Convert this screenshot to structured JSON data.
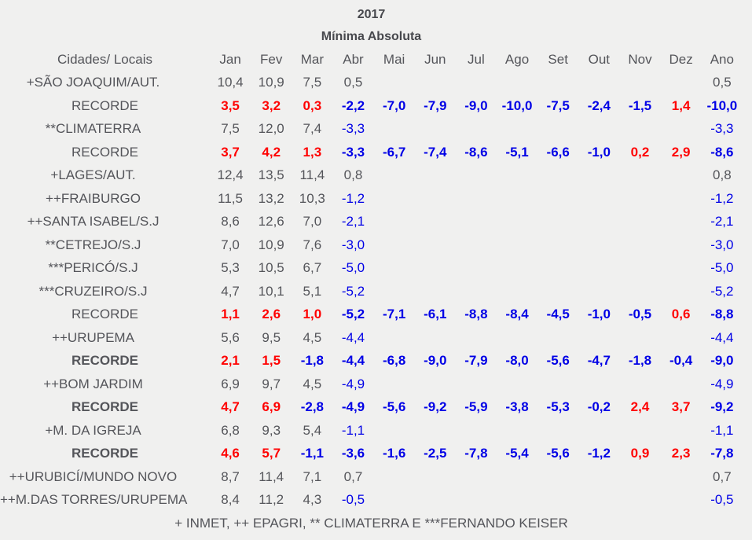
{
  "title": "2017",
  "subtitle": "Mínima Absoluta",
  "footer": "+ INMET, ++ EPAGRI, ** CLIMATERRA E ***FERNANDO KEISER",
  "colors": {
    "background": "#f0f0ef",
    "text_gray": "#54555a",
    "title_gray": "#47484d",
    "record_positive_red": "#ff0000",
    "negative_blue": "#0000e6"
  },
  "table": {
    "columns": [
      "Cidades/ Locais",
      "Jan",
      "Fev",
      "Mar",
      "Abr",
      "Mai",
      "Jun",
      "Jul",
      "Ago",
      "Set",
      "Out",
      "Nov",
      "Dez",
      "Ano"
    ],
    "rows": [
      {
        "label": "+SÃO JOAQUIM/AUT.",
        "type": "station",
        "bold_label": false,
        "values": [
          "10,4",
          "10,9",
          "7,5",
          "0,5",
          "",
          "",
          "",
          "",
          "",
          "",
          "",
          "",
          "0,5"
        ]
      },
      {
        "label": "RECORDE",
        "type": "record",
        "bold_label": false,
        "values": [
          "3,5",
          "3,2",
          "0,3",
          "-2,2",
          "-7,0",
          "-7,9",
          "-9,0",
          "-10,0",
          "-7,5",
          "-2,4",
          "-1,5",
          "1,4",
          "-10,0"
        ]
      },
      {
        "label": "**CLIMATERRA",
        "type": "station",
        "bold_label": false,
        "values": [
          "7,5",
          "12,0",
          "7,4",
          "-3,3",
          "",
          "",
          "",
          "",
          "",
          "",
          "",
          "",
          "-3,3"
        ]
      },
      {
        "label": "RECORDE",
        "type": "record",
        "bold_label": false,
        "values": [
          "3,7",
          "4,2",
          "1,3",
          "-3,3",
          "-6,7",
          "-7,4",
          "-8,6",
          "-5,1",
          "-6,6",
          "-1,0",
          "0,2",
          "2,9",
          "-8,6"
        ]
      },
      {
        "label": "+LAGES/AUT.",
        "type": "station",
        "bold_label": false,
        "values": [
          "12,4",
          "13,5",
          "11,4",
          "0,8",
          "",
          "",
          "",
          "",
          "",
          "",
          "",
          "",
          "0,8"
        ]
      },
      {
        "label": "++FRAIBURGO",
        "type": "station",
        "bold_label": false,
        "values": [
          "11,5",
          "13,2",
          "10,3",
          "-1,2",
          "",
          "",
          "",
          "",
          "",
          "",
          "",
          "",
          "-1,2"
        ]
      },
      {
        "label": "++SANTA ISABEL/S.J",
        "type": "station",
        "bold_label": false,
        "values": [
          "8,6",
          "12,6",
          "7,0",
          "-2,1",
          "",
          "",
          "",
          "",
          "",
          "",
          "",
          "",
          "-2,1"
        ]
      },
      {
        "label": "**CETREJO/S.J",
        "type": "station",
        "bold_label": false,
        "values": [
          "7,0",
          "10,9",
          "7,6",
          "-3,0",
          "",
          "",
          "",
          "",
          "",
          "",
          "",
          "",
          "-3,0"
        ]
      },
      {
        "label": "***PERICÓ/S.J",
        "type": "station",
        "bold_label": false,
        "values": [
          "5,3",
          "10,5",
          "6,7",
          "-5,0",
          "",
          "",
          "",
          "",
          "",
          "",
          "",
          "",
          "-5,0"
        ]
      },
      {
        "label": "***CRUZEIRO/S.J",
        "type": "station",
        "bold_label": false,
        "values": [
          "4,7",
          "10,1",
          "5,1",
          "-5,2",
          "",
          "",
          "",
          "",
          "",
          "",
          "",
          "",
          "-5,2"
        ]
      },
      {
        "label": "RECORDE",
        "type": "record",
        "bold_label": false,
        "values": [
          "1,1",
          "2,6",
          "1,0",
          "-5,2",
          "-7,1",
          "-6,1",
          "-8,8",
          "-8,4",
          "-4,5",
          "-1,0",
          "-0,5",
          "0,6",
          "-8,8"
        ]
      },
      {
        "label": "++URUPEMA",
        "type": "station",
        "bold_label": false,
        "values": [
          "5,6",
          "9,5",
          "4,5",
          "-4,4",
          "",
          "",
          "",
          "",
          "",
          "",
          "",
          "",
          "-4,4"
        ]
      },
      {
        "label": "RECORDE",
        "type": "record",
        "bold_label": true,
        "values": [
          "2,1",
          "1,5",
          "-1,8",
          "-4,4",
          "-6,8",
          "-9,0",
          "-7,9",
          "-8,0",
          "-5,6",
          "-4,7",
          "-1,8",
          "-0,4",
          "-9,0"
        ]
      },
      {
        "label": "++BOM JARDIM",
        "type": "station",
        "bold_label": false,
        "values": [
          "6,9",
          "9,7",
          "4,5",
          "-4,9",
          "",
          "",
          "",
          "",
          "",
          "",
          "",
          "",
          "-4,9"
        ]
      },
      {
        "label": "RECORDE",
        "type": "record",
        "bold_label": true,
        "values": [
          "4,7",
          "6,9",
          "-2,8",
          "-4,9",
          "-5,6",
          "-9,2",
          "-5,9",
          "-3,8",
          "-5,3",
          "-0,2",
          "2,4",
          "3,7",
          "-9,2"
        ]
      },
      {
        "label": "+M. DA IGREJA",
        "type": "station",
        "bold_label": false,
        "values": [
          "6,8",
          "9,3",
          "5,4",
          "-1,1",
          "",
          "",
          "",
          "",
          "",
          "",
          "",
          "",
          "-1,1"
        ]
      },
      {
        "label": "RECORDE",
        "type": "record",
        "bold_label": true,
        "values": [
          "4,6",
          "5,7",
          "-1,1",
          "-3,6",
          "-1,6",
          "-2,5",
          "-7,8",
          "-5,4",
          "-5,6",
          "-1,2",
          "0,9",
          "2,3",
          "-7,8"
        ]
      },
      {
        "label": "++URUBICÍ/MUNDO NOVO",
        "type": "station",
        "bold_label": false,
        "values": [
          "8,7",
          "11,4",
          "7,1",
          "0,7",
          "",
          "",
          "",
          "",
          "",
          "",
          "",
          "",
          "0,7"
        ]
      },
      {
        "label": "++M.DAS TORRES/URUPEMA",
        "type": "station",
        "bold_label": false,
        "values": [
          "8,4",
          "11,2",
          "4,3",
          "-0,5",
          "",
          "",
          "",
          "",
          "",
          "",
          "",
          "",
          "-0,5"
        ]
      }
    ]
  }
}
